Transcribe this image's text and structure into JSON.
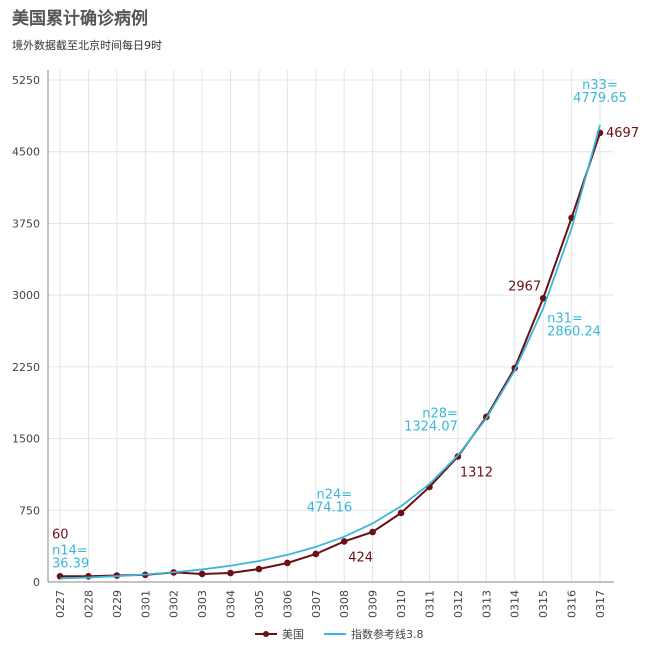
{
  "chart_data": {
    "type": "line",
    "title": "美国累计确诊病例",
    "subtitle": "境外数据截至北京时间每日9时",
    "categories": [
      "0227",
      "0228",
      "0229",
      "0301",
      "0302",
      "0303",
      "0304",
      "0305",
      "0306",
      "0307",
      "0308",
      "0309",
      "0310",
      "0311",
      "0312",
      "0313",
      "0314",
      "0315",
      "0316",
      "0317"
    ],
    "series": [
      {
        "name": "美国",
        "color": "#6b1015",
        "values": [
          60,
          60,
          68,
          75,
          100,
          84,
          94,
          136,
          199,
          293,
          424,
          523,
          722,
          994,
          1312,
          1726,
          2238,
          2967,
          3808,
          4697
        ],
        "value_labels": [
          "60",
          null,
          null,
          null,
          null,
          null,
          null,
          null,
          null,
          null,
          "424",
          null,
          null,
          null,
          "1312",
          null,
          null,
          "2967",
          null,
          "4697"
        ]
      },
      {
        "name": "指数参考线3.8",
        "color": "#3ab8d9",
        "values": [
          36.39,
          47.04,
          60.81,
          78.6,
          101.6,
          131.4,
          169.8,
          219.5,
          283.8,
          366.8,
          474.16,
          612.9,
          792.3,
          1024.2,
          1324.07,
          1711.6,
          2212.6,
          2860.24,
          3697.5,
          4779.65
        ],
        "value_labels": [
          "n14=\n36.39",
          null,
          null,
          null,
          null,
          null,
          null,
          null,
          null,
          null,
          "n24=\n474.16",
          null,
          null,
          null,
          "n28=\n1324.07",
          null,
          null,
          "n31=\n2860.24",
          null,
          "n33=\n4779.65"
        ]
      }
    ],
    "ylim": [
      0,
      5250
    ],
    "yticks": [
      0,
      750,
      1500,
      2250,
      3000,
      3750,
      4500,
      5250
    ],
    "grid": true,
    "legend": "bottom"
  }
}
